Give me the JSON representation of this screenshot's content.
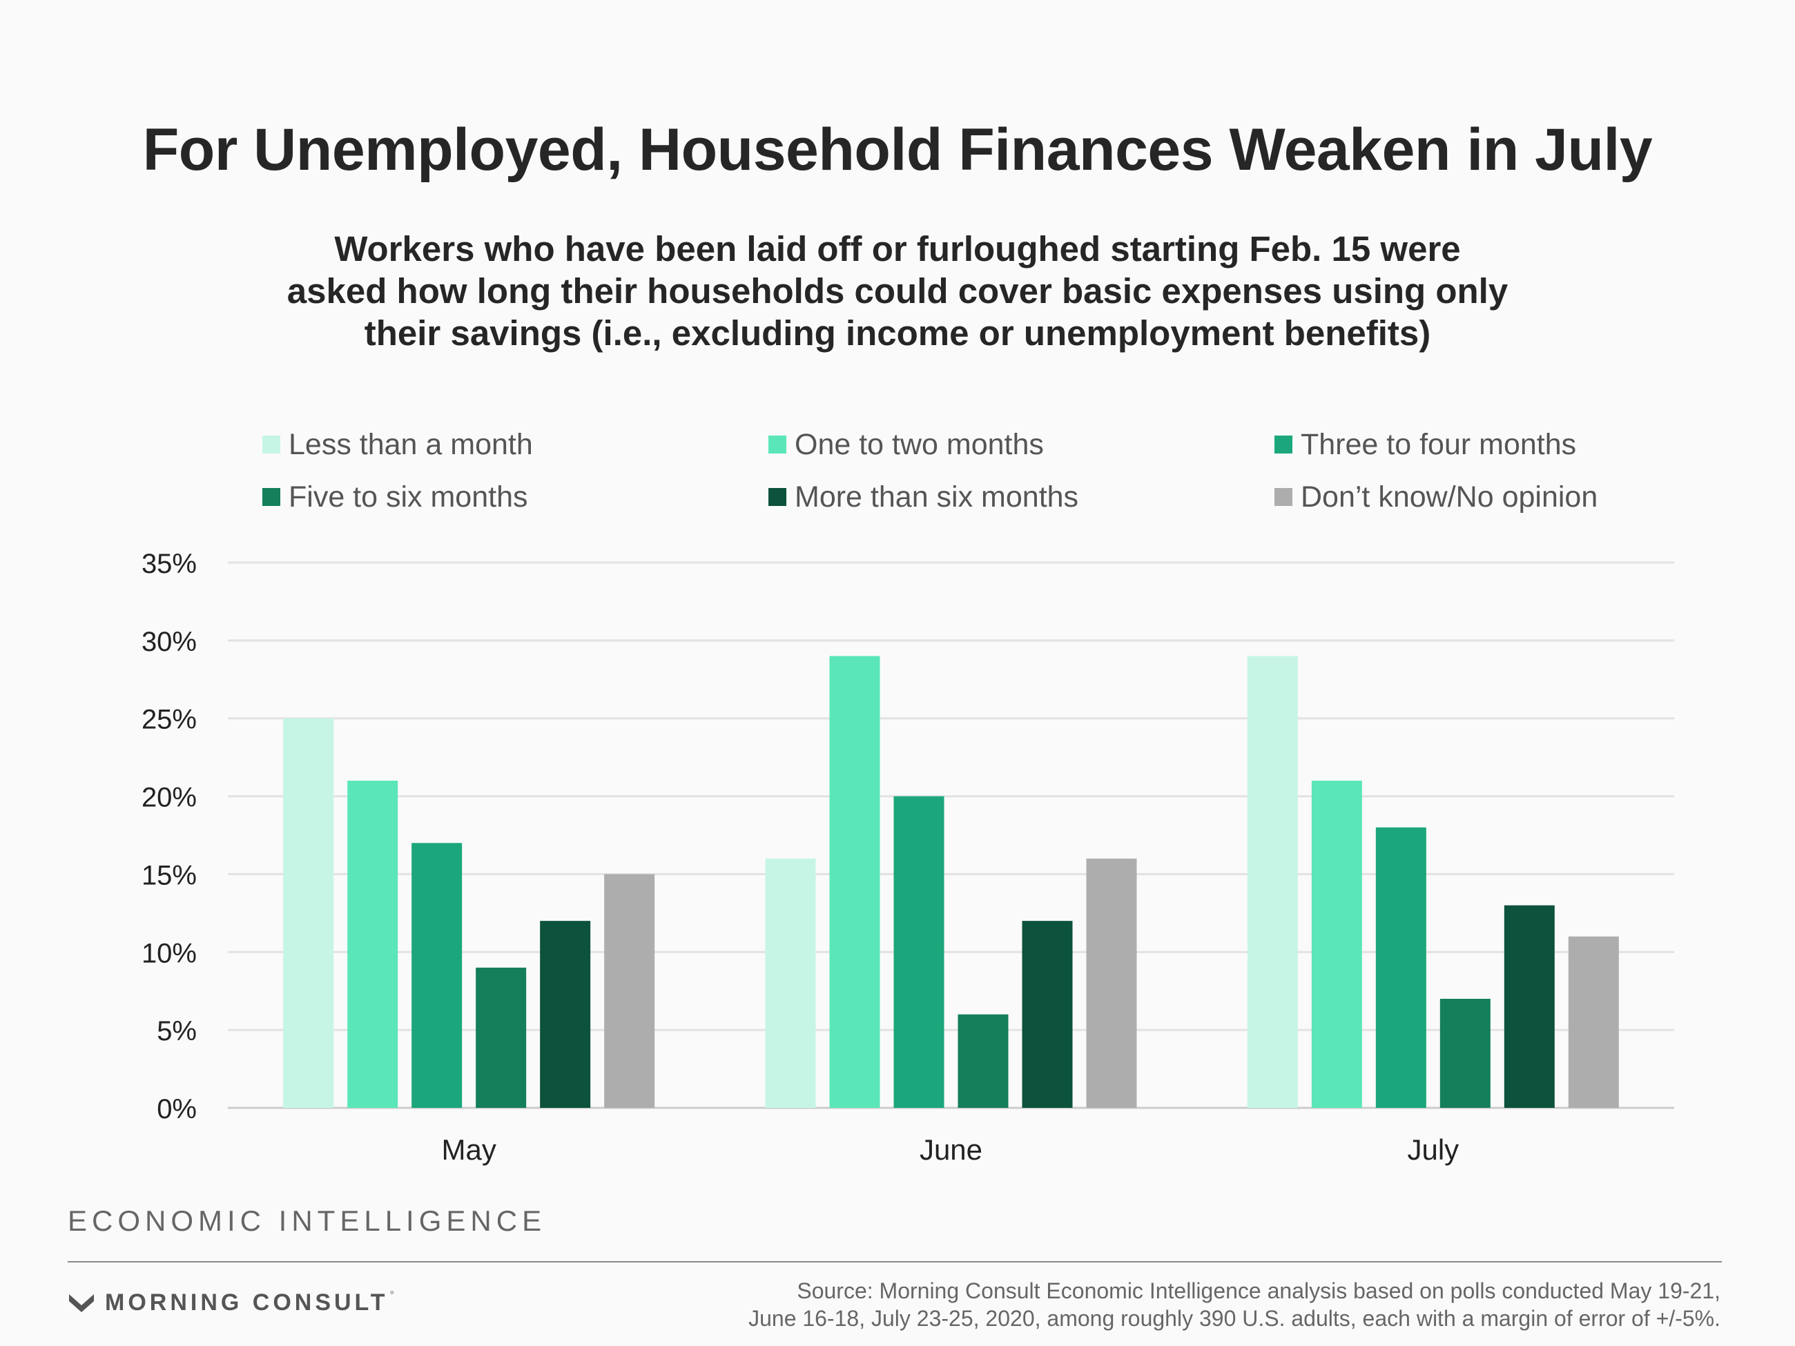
{
  "title": "For Unemployed, Household Finances Weaken in July",
  "subtitle_lines": [
    "Workers who have been laid off or furloughed starting Feb. 15 were",
    "asked how long their households could cover basic expenses using only",
    "their savings (i.e., excluding income or unemployment benefits)"
  ],
  "brand_label": "ECONOMIC INTELLIGENCE",
  "logo_text": "MORNING CONSULT",
  "logo_icon": "morning-consult-chevron-icon",
  "source_lines": [
    "Source: Morning Consult Economic Intelligence analysis based on polls conducted May 19-21,",
    "June 16-18, July 23-25, 2020, among roughly 390 U.S. adults, each with a margin of error of +/-5%."
  ],
  "chart_data": {
    "type": "bar",
    "categories": [
      "May",
      "June",
      "July"
    ],
    "series": [
      {
        "name": "Less than a month",
        "color": "#c6f5e6",
        "values": [
          25,
          16,
          29
        ]
      },
      {
        "name": "One to two months",
        "color": "#5ae6b9",
        "values": [
          21,
          29,
          21
        ]
      },
      {
        "name": "Three to four months",
        "color": "#1ba77b",
        "values": [
          17,
          20,
          18
        ]
      },
      {
        "name": "Five to six months",
        "color": "#147f5a",
        "values": [
          9,
          6,
          7
        ]
      },
      {
        "name": "More than six months",
        "color": "#0c523c",
        "values": [
          12,
          12,
          13
        ]
      },
      {
        "name": "Don’t know/No opinion",
        "color": "#adadad",
        "values": [
          15,
          16,
          11
        ]
      }
    ],
    "ylim": [
      0,
      35
    ],
    "yticks": [
      0,
      5,
      10,
      15,
      20,
      25,
      30,
      35
    ],
    "ytick_labels": [
      "0%",
      "5%",
      "10%",
      "15%",
      "20%",
      "25%",
      "30%",
      "35%"
    ],
    "grid": true,
    "legend_position": "top"
  }
}
